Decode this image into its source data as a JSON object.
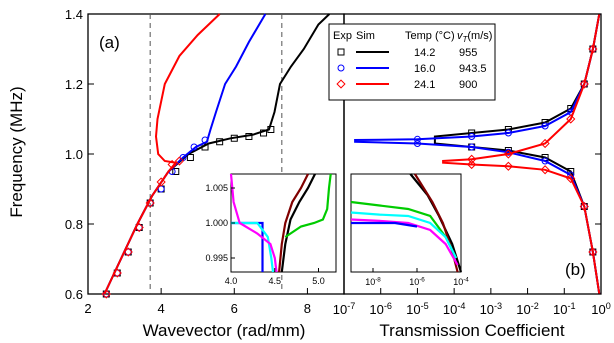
{
  "chart_data": [
    {
      "id": "a",
      "type": "line",
      "panel_label": "(a)",
      "xlabel": "Wavevector (rad/mm)",
      "ylabel": "Frequency (MHz)",
      "xlim": [
        2,
        9
      ],
      "ylim": [
        0.6,
        1.4
      ],
      "x_ticks": [
        2,
        4,
        6,
        8
      ],
      "x_tick_labels": [
        "2",
        "4",
        "6",
        "8"
      ],
      "y_ticks": [
        0.6,
        0.8,
        1.0,
        1.2,
        1.4
      ],
      "y_tick_labels": [
        "0.6",
        "0.8",
        "1.0",
        "1.2",
        "1.4"
      ],
      "dashed_lines_x": [
        3.7,
        7.3
      ],
      "series": [
        {
          "name": "14.2",
          "color": "#000000",
          "marker": "square",
          "sim": {
            "x": [
              2.45,
              2.9,
              3.35,
              3.75,
              4.2,
              4.75,
              5.3,
              5.9,
              6.5,
              6.95,
              7.1,
              7.25,
              7.55,
              7.9,
              8.3,
              8.6
            ],
            "y": [
              0.6,
              0.7,
              0.8,
              0.88,
              0.95,
              1.0,
              1.03,
              1.045,
              1.055,
              1.07,
              1.12,
              1.2,
              1.25,
              1.3,
              1.37,
              1.4
            ]
          },
          "exp": {
            "x": [
              2.5,
              2.8,
              3.1,
              3.4,
              3.7,
              4.0,
              4.4,
              4.8,
              5.2,
              5.6,
              6.0,
              6.4,
              6.8,
              7.0
            ],
            "y": [
              0.6,
              0.66,
              0.72,
              0.79,
              0.86,
              0.9,
              0.95,
              0.99,
              1.02,
              1.035,
              1.045,
              1.05,
              1.06,
              1.07
            ]
          }
        },
        {
          "name": "16.0",
          "color": "#0000ff",
          "marker": "circle",
          "sim": {
            "x": [
              2.45,
              2.9,
              3.35,
              3.75,
              4.2,
              4.6,
              4.95,
              5.25,
              5.35,
              5.5,
              5.75,
              6.05,
              6.4,
              6.85
            ],
            "y": [
              0.6,
              0.7,
              0.8,
              0.88,
              0.95,
              0.99,
              1.02,
              1.035,
              1.07,
              1.12,
              1.2,
              1.25,
              1.32,
              1.4
            ]
          },
          "exp": {
            "x": [
              2.5,
              2.8,
              3.1,
              3.4,
              3.7,
              4.0,
              4.3,
              4.6,
              4.9,
              5.2
            ],
            "y": [
              0.6,
              0.66,
              0.72,
              0.79,
              0.86,
              0.9,
              0.95,
              0.99,
              1.02,
              1.04
            ]
          }
        },
        {
          "name": "24.1",
          "color": "#ff0000",
          "marker": "diamond",
          "sim": {
            "x": [
              2.45,
              2.9,
              3.35,
              3.75,
              4.2,
              4.4,
              4.1,
              3.92,
              3.86,
              3.9,
              4.1,
              4.5,
              5.0,
              5.6
            ],
            "y": [
              0.6,
              0.7,
              0.8,
              0.88,
              0.95,
              0.975,
              0.98,
              1.0,
              1.05,
              1.1,
              1.2,
              1.28,
              1.34,
              1.4
            ]
          },
          "exp": {
            "x": [
              2.5,
              2.8,
              3.1,
              3.4,
              3.7,
              4.0,
              4.3,
              4.5
            ],
            "y": [
              0.6,
              0.66,
              0.72,
              0.79,
              0.86,
              0.92,
              0.97,
              0.98
            ]
          }
        }
      ]
    },
    {
      "id": "b",
      "type": "line",
      "panel_label": "(b)",
      "xlabel": "Transmission Coefficient",
      "x_scale": "log",
      "xlim": [
        1e-07,
        1
      ],
      "ylim": [
        0.6,
        1.4
      ],
      "x_ticks": [
        1e-07,
        1e-06,
        1e-05,
        0.0001,
        0.001,
        0.01,
        0.1,
        1
      ],
      "x_tick_labels": [
        [
          "10",
          "-7"
        ],
        [
          "10",
          "-6"
        ],
        [
          "10",
          "-5"
        ],
        [
          "10",
          "-4"
        ],
        [
          "10",
          "-3"
        ],
        [
          "10",
          "-2"
        ],
        [
          "10",
          "-1"
        ],
        [
          "10",
          "0"
        ]
      ],
      "legend": {
        "placement": "top-right",
        "headers": [
          "Exp",
          "Sim",
          "Temp (°C)",
          "v",
          "T",
          "(m/s)"
        ],
        "rows": [
          {
            "temp": "14.2",
            "vt": "955",
            "color": "#000000",
            "marker": "square"
          },
          {
            "temp": "16.0",
            "vt": "943.5",
            "color": "#0000ff",
            "marker": "circle"
          },
          {
            "temp": "24.1",
            "vt": "900",
            "color": "#ff0000",
            "marker": "diamond"
          }
        ]
      },
      "series": [
        {
          "name": "14.2",
          "color": "#000000",
          "upper": {
            "x": [
              0.9,
              0.6,
              0.35,
              0.15,
              0.03,
              0.003,
              0.0003,
              3e-05
            ],
            "y": [
              1.4,
              1.3,
              1.2,
              1.13,
              1.09,
              1.07,
              1.06,
              1.05
            ]
          },
          "lower": {
            "x": [
              3e-05,
              0.0003,
              0.003,
              0.03,
              0.15,
              0.35,
              0.6,
              0.9
            ],
            "y": [
              1.03,
              1.02,
              1.01,
              0.99,
              0.95,
              0.85,
              0.72,
              0.6
            ]
          }
        },
        {
          "name": "16.0",
          "color": "#0000ff",
          "upper": {
            "x": [
              0.9,
              0.6,
              0.35,
              0.15,
              0.03,
              0.003,
              0.0003,
              1e-05,
              2e-07
            ],
            "y": [
              1.4,
              1.3,
              1.2,
              1.12,
              1.08,
              1.06,
              1.05,
              1.042,
              1.04
            ]
          },
          "lower": {
            "x": [
              2e-07,
              1e-05,
              0.0003,
              0.003,
              0.03,
              0.15,
              0.35,
              0.6,
              0.9
            ],
            "y": [
              1.035,
              1.03,
              1.02,
              1.005,
              0.98,
              0.94,
              0.85,
              0.72,
              0.6
            ]
          }
        },
        {
          "name": "24.1",
          "color": "#ff0000",
          "upper": {
            "x": [
              0.9,
              0.6,
              0.35,
              0.15,
              0.03,
              0.003,
              0.0003,
              5e-05
            ],
            "y": [
              1.4,
              1.3,
              1.2,
              1.1,
              1.03,
              1.0,
              0.985,
              0.98
            ]
          },
          "lower": {
            "x": [
              5e-05,
              0.0003,
              0.003,
              0.03,
              0.15,
              0.35,
              0.6,
              0.9
            ],
            "y": [
              0.975,
              0.97,
              0.965,
              0.955,
              0.93,
              0.85,
              0.72,
              0.6
            ]
          }
        }
      ]
    },
    {
      "id": "inset-a",
      "type": "line",
      "xlim": [
        4.0,
        5.2
      ],
      "ylim": [
        0.993,
        1.007
      ],
      "x_ticks": [
        4.0,
        4.5,
        5.0
      ],
      "x_tick_labels": [
        "4.0",
        "4.5",
        "5.0"
      ],
      "y_ticks": [
        0.995,
        1.0,
        1.005
      ],
      "y_tick_labels": [
        "0.995",
        "1.000",
        "1.005"
      ],
      "series": [
        {
          "color": "#000000",
          "x": [
            4.58,
            4.62,
            4.68,
            4.78,
            4.88,
            4.96
          ],
          "y": [
            0.993,
            0.997,
            1.0005,
            1.003,
            1.005,
            1.007
          ]
        },
        {
          "color": "#800000",
          "x": [
            4.55,
            4.58,
            4.62,
            4.7,
            4.8,
            4.88
          ],
          "y": [
            0.993,
            0.997,
            1.0,
            1.003,
            1.005,
            1.007
          ]
        },
        {
          "color": "#00cc00",
          "x": [
            4.62,
            4.8,
            4.95,
            5.05,
            5.1,
            5.12,
            5.14
          ],
          "y": [
            0.998,
            0.9995,
            1.0,
            1.0005,
            1.002,
            1.005,
            1.007
          ]
        },
        {
          "color": "#0000ff",
          "x": [
            4.0,
            4.3,
            4.36,
            4.36,
            4.36
          ],
          "y": [
            1.0,
            1.0,
            1.0,
            0.996,
            0.993
          ]
        },
        {
          "color": "#00ffff",
          "x": [
            4.0,
            4.3,
            4.42,
            4.46,
            4.48
          ],
          "y": [
            1.0,
            1.0,
            0.998,
            0.995,
            0.993
          ]
        },
        {
          "color": "#ff00ff",
          "x": [
            4.0,
            4.03,
            4.1,
            4.3,
            4.45,
            4.5,
            4.52
          ],
          "y": [
            1.007,
            1.003,
            1.0,
            0.9985,
            0.997,
            0.995,
            0.993
          ]
        }
      ]
    },
    {
      "id": "inset-b",
      "type": "line",
      "x_scale": "log",
      "xlim": [
        1e-09,
        0.0001
      ],
      "ylim": [
        0.993,
        1.007
      ],
      "x_ticks": [
        1e-08,
        1e-06,
        0.0001
      ],
      "x_tick_labels": [
        [
          "10",
          "-8"
        ],
        [
          "10",
          "-6"
        ],
        [
          "10",
          "-4"
        ]
      ],
      "series": [
        {
          "color": "#000000",
          "x": [
            5e-07,
            3e-06,
            1e-05,
            4e-05,
            0.0001
          ],
          "y": [
            1.007,
            1.004,
            1.001,
            0.997,
            0.993
          ]
        },
        {
          "color": "#800000",
          "x": [
            8e-07,
            5e-06,
            1.5e-05,
            4e-05,
            7e-05
          ],
          "y": [
            1.007,
            1.003,
            1.0,
            0.996,
            0.993
          ]
        },
        {
          "color": "#00cc00",
          "x": [
            1e-09,
            2e-08,
            4e-07,
            4e-06,
            2e-05,
            6e-05
          ],
          "y": [
            1.003,
            1.0025,
            1.002,
            1.001,
            0.998,
            0.995
          ]
        },
        {
          "color": "#00ffff",
          "x": [
            1e-09,
            2e-08,
            4e-07,
            4e-06,
            2e-05,
            6e-05
          ],
          "y": [
            1.0015,
            1.0012,
            1.001,
            1.0,
            0.998,
            0.995
          ]
        },
        {
          "color": "#ff00ff",
          "x": [
            1e-09,
            2e-08,
            4e-07,
            4e-06,
            2e-05,
            7e-05
          ],
          "y": [
            1.0005,
            1.0003,
            1.0,
            0.999,
            0.997,
            0.994
          ]
        },
        {
          "color": "#0000ff",
          "x": [
            1e-09,
            1e-08,
            1e-07,
            1e-06
          ],
          "y": [
            1.0,
            1.0,
            1.0,
            0.9995
          ]
        }
      ]
    }
  ]
}
